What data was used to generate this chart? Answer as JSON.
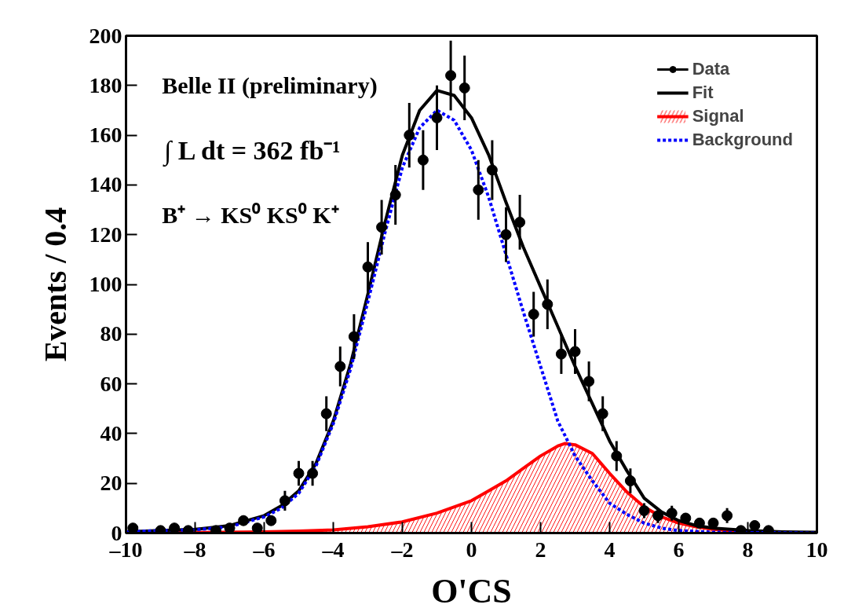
{
  "chart_data": {
    "type": "scatter",
    "xlabel": "O'CS",
    "ylabel": "Events / 0.4",
    "annotations": [
      "Belle II (preliminary)",
      "∫ L dt = 362 fb⁻¹",
      "B⁺ → KS⁰ KS⁰ K⁺"
    ],
    "xlim": [
      -10,
      10
    ],
    "xticks": [
      {
        "value": -10,
        "label": "–10"
      },
      {
        "value": -8,
        "label": "–8"
      },
      {
        "value": -6,
        "label": "–6"
      },
      {
        "value": -4,
        "label": "–4"
      },
      {
        "value": -2,
        "label": "–2"
      },
      0,
      2,
      4,
      6,
      8,
      10
    ],
    "ylim": [
      0,
      200
    ],
    "yticks": [
      0,
      20,
      40,
      60,
      80,
      100,
      120,
      140,
      160,
      180,
      200
    ],
    "grid": false,
    "legend": "top right",
    "series": [
      {
        "name": "Data",
        "marker": "circle",
        "color": "#000000",
        "x": [
          -9.8,
          -9.0,
          -8.6,
          -8.2,
          -7.4,
          -7.0,
          -6.6,
          -6.2,
          -5.8,
          -5.4,
          -5.0,
          -4.6,
          -4.2,
          -3.8,
          -3.4,
          -3.0,
          -2.6,
          -2.2,
          -1.8,
          -1.4,
          -1.0,
          -0.6,
          -0.2,
          0.2,
          0.6,
          1.0,
          1.4,
          1.8,
          2.2,
          2.6,
          3.0,
          3.4,
          3.8,
          4.2,
          4.6,
          5.0,
          5.4,
          5.8,
          6.2,
          6.6,
          7.0,
          7.4,
          7.8,
          8.2,
          8.6
        ],
        "values": [
          2,
          1,
          2,
          1,
          1,
          2,
          5,
          2,
          5,
          13,
          24,
          24,
          48,
          67,
          79,
          107,
          123,
          136,
          160,
          150,
          167,
          184,
          179,
          138,
          146,
          120,
          125,
          88,
          92,
          72,
          73,
          61,
          48,
          31,
          21,
          9,
          7,
          8,
          6,
          4,
          4,
          7,
          1,
          3,
          1
        ],
        "errors": [
          1,
          1,
          1,
          1,
          1,
          1,
          2,
          1,
          2,
          4,
          5,
          5,
          7,
          8,
          9,
          10,
          11,
          12,
          13,
          12,
          13,
          14,
          13,
          12,
          12,
          11,
          11,
          9,
          10,
          8,
          9,
          8,
          7,
          6,
          5,
          3,
          3,
          3,
          2,
          2,
          2,
          3,
          1,
          2,
          1
        ]
      },
      {
        "name": "Fit",
        "type": "line",
        "line_style": "solid",
        "color": "#000000",
        "x": [
          -10,
          -9,
          -8,
          -7,
          -6,
          -5.5,
          -5,
          -4.5,
          -4,
          -3.5,
          -3,
          -2.5,
          -2,
          -1.5,
          -1,
          -0.5,
          0,
          0.5,
          1,
          1.5,
          2,
          2.5,
          3,
          3.5,
          4,
          4.5,
          5,
          5.5,
          6,
          6.5,
          7,
          8,
          9,
          10
        ],
        "values": [
          0.5,
          1,
          1.5,
          3,
          7,
          11,
          17,
          28,
          45,
          68,
          96,
          125,
          152,
          170,
          178,
          176,
          167,
          152,
          133,
          115,
          99,
          83,
          67,
          52,
          37,
          25,
          14,
          8.5,
          5,
          3,
          2,
          1,
          0.5,
          0.3
        ]
      },
      {
        "name": "Signal",
        "type": "area",
        "color": "#ff0000",
        "x": [
          -10,
          -8,
          -6,
          -5,
          -4,
          -3,
          -2,
          -1,
          0,
          0.5,
          1,
          1.5,
          2,
          2.5,
          2.7,
          3,
          3.5,
          4,
          4.5,
          5,
          5.5,
          6,
          6.5,
          7,
          8,
          9,
          10
        ],
        "values": [
          0,
          0.2,
          0.5,
          0.8,
          1.3,
          2.5,
          4.5,
          8,
          13,
          17,
          21,
          26,
          31,
          35,
          36,
          35.5,
          32,
          24,
          16.5,
          10.5,
          6.5,
          4,
          2.5,
          1.5,
          0.5,
          0.2,
          0.1
        ]
      },
      {
        "name": "Background",
        "type": "line",
        "line_style": "dotted",
        "color": "#0000ff",
        "x": [
          -10,
          -9,
          -8,
          -7,
          -6,
          -5.5,
          -5,
          -4.5,
          -4,
          -3.5,
          -3,
          -2.5,
          -2,
          -1.5,
          -1,
          -0.5,
          0,
          0.5,
          1,
          1.5,
          2,
          2.5,
          3,
          3.5,
          4,
          4.5,
          5,
          5.5,
          6,
          7,
          10
        ],
        "values": [
          0.5,
          1,
          1.3,
          2.5,
          6.5,
          10,
          16,
          27,
          44,
          66,
          93,
          121,
          147,
          163,
          170,
          166,
          154,
          135,
          112,
          89,
          67,
          45,
          31,
          21,
          12,
          7.5,
          4,
          2,
          1,
          0.3,
          0
        ]
      }
    ]
  }
}
